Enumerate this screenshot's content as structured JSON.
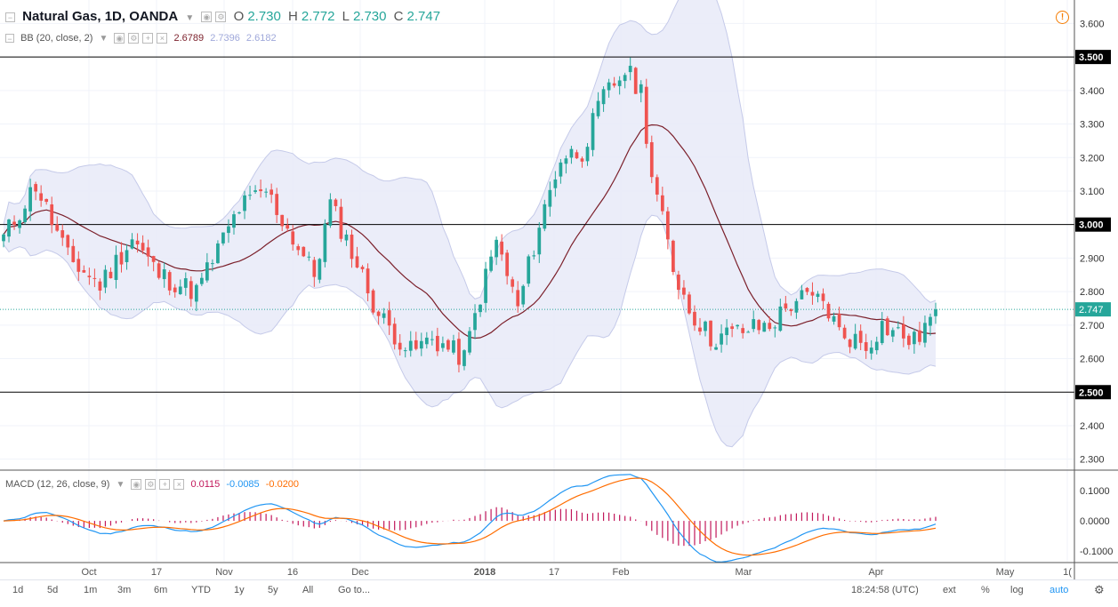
{
  "header": {
    "symbol": "Natural Gas, 1D, OANDA",
    "o_label": "O",
    "o_value": "2.730",
    "h_label": "H",
    "h_value": "2.772",
    "l_label": "L",
    "l_value": "2.730",
    "c_label": "C",
    "c_value": "2.747"
  },
  "bb_legend": {
    "label": "BB (20, close, 2)",
    "v1": "2.6789",
    "v2": "2.7396",
    "v3": "2.6182"
  },
  "macd_legend": {
    "label": "MACD (12, 26, close, 9)",
    "v1": "0.0115",
    "v2": "-0.0085",
    "v3": "-0.0200"
  },
  "colors": {
    "up": "#26a69a",
    "down": "#ef5350",
    "bb_fill": "#e8eaf8",
    "bb_line": "#c5cae9",
    "basis": "#7b1f2a",
    "macd_line": "#2196f3",
    "signal_line": "#ff6d00",
    "hist": "#c2185b"
  },
  "bottom_bar": {
    "timeframes": [
      "1d",
      "5d",
      "1m",
      "3m",
      "6m",
      "YTD",
      "1y",
      "5y",
      "All"
    ],
    "goto": "Go to...",
    "time": "18:24:58 (UTC)",
    "options": [
      "ext",
      "%",
      "log",
      "auto"
    ]
  },
  "chart_data": {
    "type": "candlestick",
    "x_ticks": [
      "Oct",
      "17",
      "Nov",
      "16",
      "Dec",
      "2018",
      "17",
      "Feb",
      "Mar",
      "Apr",
      "May",
      "1("
    ],
    "y_ticks": [
      "3.600",
      "3.400",
      "3.300",
      "3.200",
      "3.100",
      "2.900",
      "2.800",
      "2.700",
      "2.600",
      "2.400",
      "2.300"
    ],
    "ylim": [
      2.27,
      3.67
    ],
    "horizontal_levels": [
      "3.500",
      "3.000",
      "2.500"
    ],
    "last_price": "2.747",
    "macd_ticks": [
      "0.1000",
      "0.0000",
      "-0.1000"
    ],
    "macd_ylim": [
      -0.135,
      0.165
    ]
  }
}
